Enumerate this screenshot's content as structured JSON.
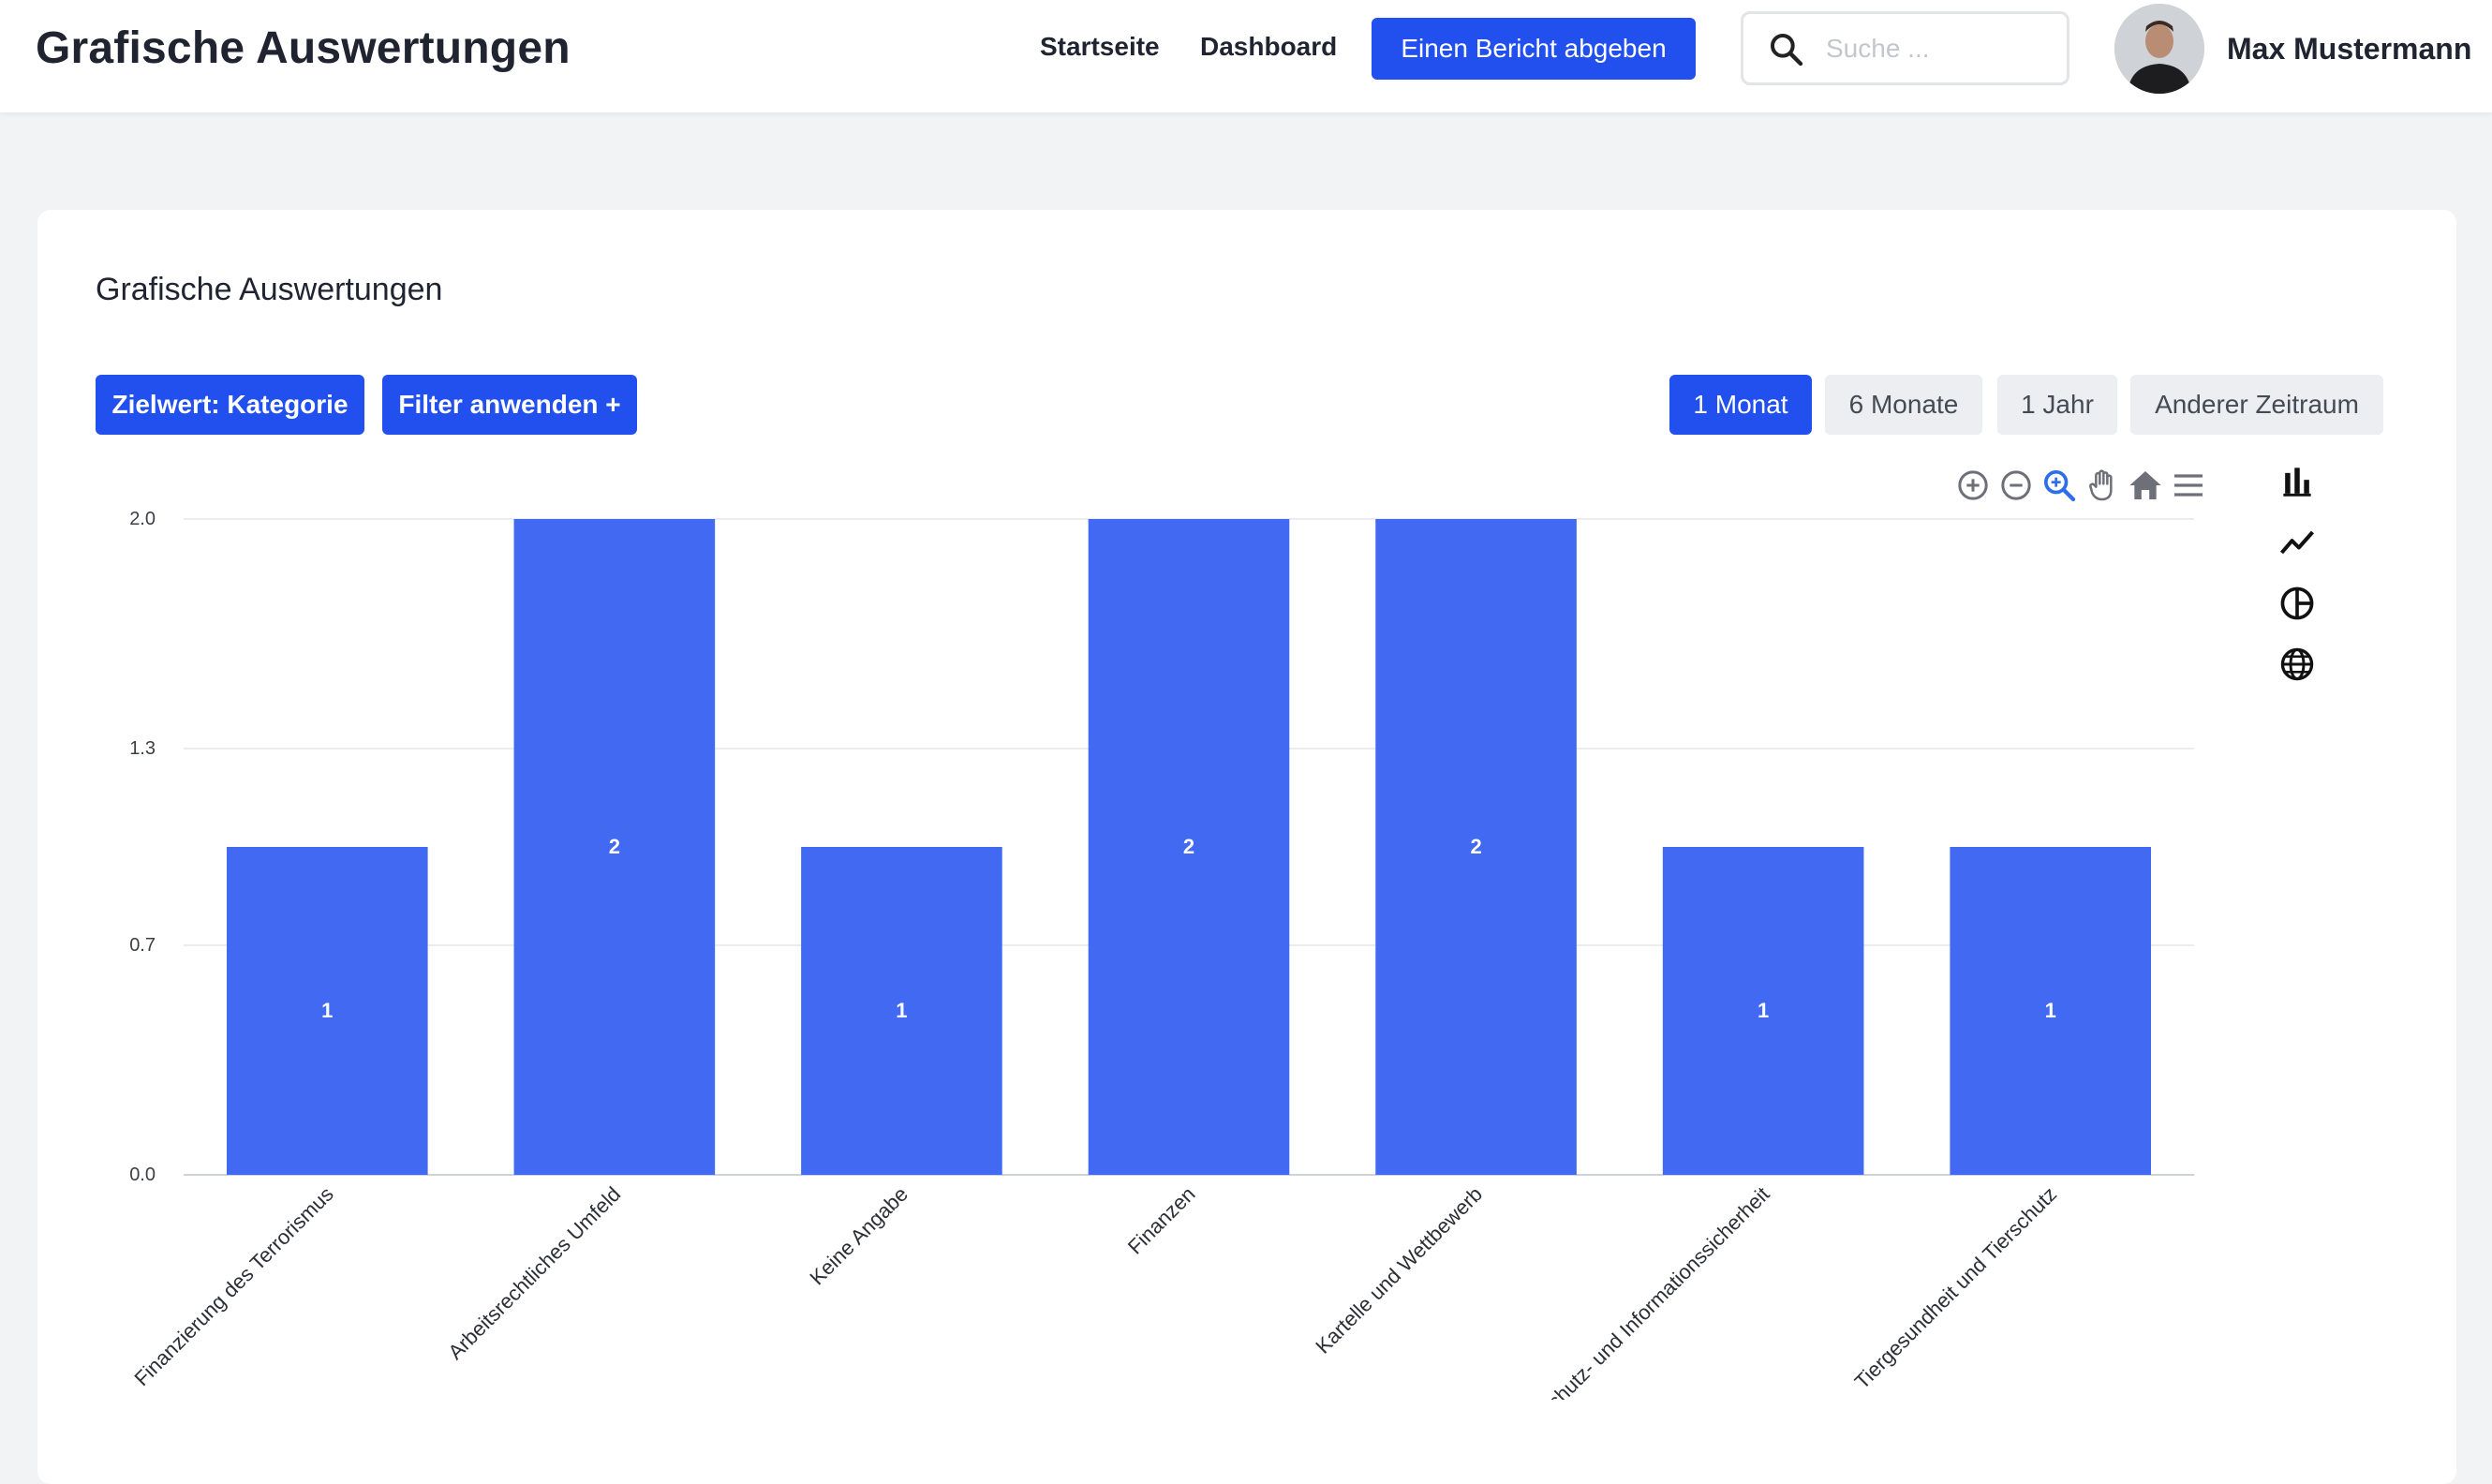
{
  "header": {
    "title": "Grafische Auswertungen",
    "nav": {
      "home": "Startseite",
      "dashboard": "Dashboard"
    },
    "report_button": "Einen Bericht abgeben",
    "search_placeholder": "Suche ...",
    "user_name": "Max Mustermann"
  },
  "card": {
    "title": "Grafische Auswertungen",
    "target_button": "Zielwert: Kategorie",
    "filter_button": "Filter anwenden +",
    "periods": [
      "1 Monat",
      "6 Monate",
      "1 Jahr",
      "Anderer Zeitraum"
    ],
    "active_period": "1 Monat"
  },
  "toolbar_icons": [
    "zoom-in-icon",
    "zoom-out-icon",
    "selection-zoom-icon",
    "pan-icon",
    "reset-home-icon",
    "menu-icon"
  ],
  "chart_type_icons": [
    "bar-chart-icon",
    "line-chart-icon",
    "pie-chart-icon",
    "globe-icon"
  ],
  "colors": {
    "accent": "#2250ef",
    "bar": "#4169f2"
  },
  "chart_data": {
    "type": "bar",
    "categories": [
      "Finanzierung des Terrorismus",
      "Arbeitsrechtliches Umfeld",
      "Keine Angabe",
      "Finanzen",
      "Kartelle und Wettbewerb",
      "Datenschutz- und Informationssicherheit",
      "Tiergesundheit und Tierschutz"
    ],
    "values": [
      1,
      2,
      1,
      2,
      2,
      1,
      1
    ],
    "y_ticks": [
      "0.0",
      "0.7",
      "1.3",
      "2.0"
    ],
    "ylim": [
      0,
      2
    ],
    "grid": true,
    "data_labels": true
  }
}
